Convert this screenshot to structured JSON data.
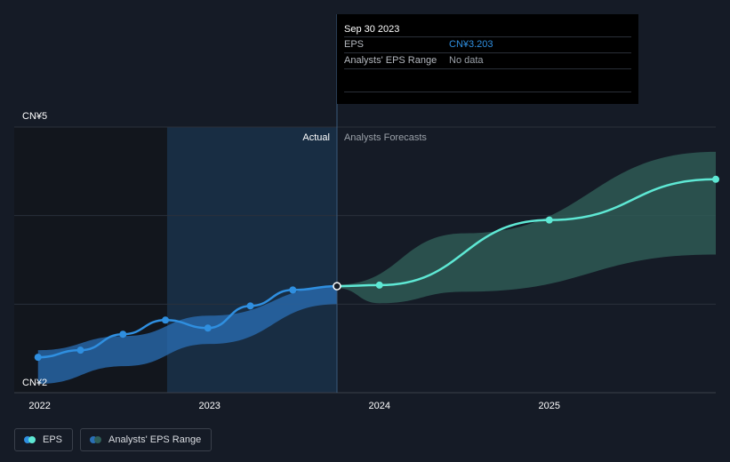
{
  "colors": {
    "background": "#151b26",
    "eps_actual": "#2f8fe0",
    "eps_forecast": "#5ee8d4",
    "range_actual": "#2a6fb5",
    "range_forecast": "#2f5e58",
    "actual_region": "#1a3550",
    "grid": "#2a303b"
  },
  "tooltip": {
    "date": "Sep 30 2023",
    "rows": [
      {
        "label": "EPS",
        "value": "CN¥3.203"
      },
      {
        "label": "Analysts' EPS Range",
        "value": "No data"
      }
    ]
  },
  "legend": {
    "eps_label": "EPS",
    "range_label": "Analysts' EPS Range"
  },
  "chart_data": {
    "type": "line",
    "y_tick_labels": [
      "CN¥5",
      "CN¥2"
    ],
    "ylim": [
      2,
      5
    ],
    "x_tick_labels": [
      "2022",
      "2023",
      "2024",
      "2025"
    ],
    "x_ticks": [
      2022.0,
      2023.0,
      2024.0,
      2025.0
    ],
    "xlim": [
      2021.85,
      2025.98
    ],
    "grid": true,
    "region_labels": {
      "actual": "Actual",
      "forecast": "Analysts Forecasts"
    },
    "highlight_start": 2022.75,
    "divider_x": 2023.75,
    "series": [
      {
        "name": "EPS",
        "style": "actual",
        "points": [
          [
            2021.99,
            2.4
          ],
          [
            2022.24,
            2.48
          ],
          [
            2022.49,
            2.66
          ],
          [
            2022.74,
            2.82
          ],
          [
            2022.99,
            2.73
          ],
          [
            2023.24,
            2.98
          ],
          [
            2023.49,
            3.16
          ],
          [
            2023.75,
            3.203
          ]
        ]
      },
      {
        "name": "EPS",
        "style": "forecast",
        "points": [
          [
            2023.75,
            3.203
          ],
          [
            2024.0,
            3.215
          ],
          [
            2025.0,
            3.95
          ],
          [
            2025.98,
            4.41
          ]
        ]
      }
    ],
    "ranges": [
      {
        "name": "Analysts' EPS Range",
        "style": "actual",
        "upper": [
          [
            2021.99,
            2.48
          ],
          [
            2022.5,
            2.64
          ],
          [
            2023.0,
            2.87
          ],
          [
            2023.75,
            3.2
          ]
        ],
        "lower": [
          [
            2021.99,
            2.1
          ],
          [
            2022.5,
            2.3
          ],
          [
            2023.0,
            2.55
          ],
          [
            2023.75,
            3.0
          ]
        ]
      },
      {
        "name": "Analysts' EPS Range",
        "style": "forecast",
        "upper": [
          [
            2023.75,
            3.22
          ],
          [
            2024.5,
            3.8
          ],
          [
            2025.98,
            4.72
          ]
        ],
        "lower": [
          [
            2023.75,
            3.18
          ],
          [
            2024.0,
            3.01
          ],
          [
            2024.5,
            3.14
          ],
          [
            2025.98,
            3.56
          ]
        ]
      }
    ]
  }
}
